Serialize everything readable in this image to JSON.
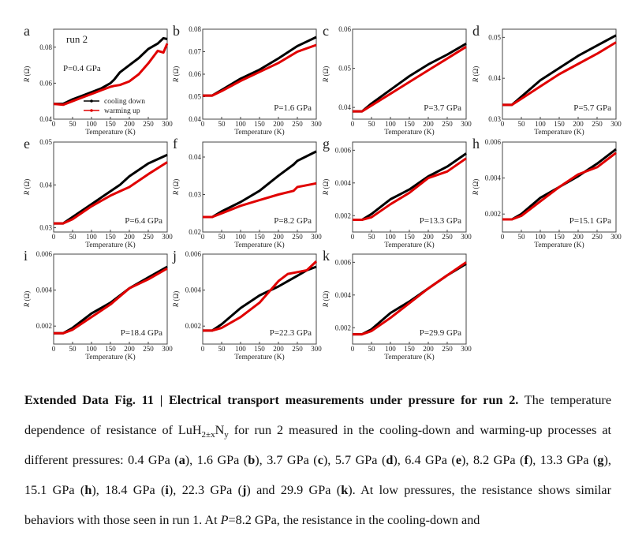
{
  "figure": {
    "x_ticks": [
      "0",
      "50",
      "100",
      "150",
      "200",
      "250",
      "300"
    ],
    "xlabel": "Temperature (K)",
    "ylabel_symbol": "R",
    "ylabel_unit": " (Ω)",
    "run_label": "run 2",
    "legend": [
      "cooling down",
      "warming up"
    ],
    "colors": {
      "cooling": "#000000",
      "warming": "#e00000"
    }
  },
  "chart_data": [
    {
      "panel": "a",
      "type": "line",
      "annotation": "P=0.4 GPa",
      "ylim": [
        0.04,
        0.09
      ],
      "y_ticks": [
        "0.04",
        "0.06",
        "0.08"
      ],
      "x": [
        0,
        25,
        50,
        75,
        100,
        125,
        150,
        160,
        175,
        200,
        225,
        250,
        275,
        290,
        300
      ],
      "series": [
        {
          "name": "cooling down",
          "values": [
            0.0485,
            0.0485,
            0.051,
            0.053,
            0.055,
            0.057,
            0.06,
            0.062,
            0.066,
            0.07,
            0.074,
            0.079,
            0.082,
            0.085,
            0.0845
          ]
        },
        {
          "name": "warming up",
          "values": [
            0.0485,
            0.048,
            0.05,
            0.052,
            0.054,
            0.056,
            0.058,
            0.0585,
            0.059,
            0.061,
            0.065,
            0.071,
            0.078,
            0.077,
            0.082
          ]
        }
      ]
    },
    {
      "panel": "b",
      "type": "line",
      "annotation": "P=1.6 GPa",
      "ylim": [
        0.04,
        0.08
      ],
      "y_ticks": [
        "0.04",
        "0.05",
        "0.06",
        "0.07",
        "0.08"
      ],
      "x": [
        0,
        25,
        50,
        100,
        150,
        200,
        250,
        300
      ],
      "series": [
        {
          "name": "cooling down",
          "values": [
            0.0505,
            0.0505,
            0.053,
            0.058,
            0.062,
            0.067,
            0.0725,
            0.0765
          ]
        },
        {
          "name": "warming up",
          "values": [
            0.0505,
            0.0505,
            0.0525,
            0.057,
            0.061,
            0.065,
            0.07,
            0.073
          ]
        }
      ]
    },
    {
      "panel": "c",
      "type": "line",
      "annotation": "P=3.7 GPa",
      "ylim": [
        0.037,
        0.06
      ],
      "y_ticks": [
        "0.04",
        "0.05",
        "0.06"
      ],
      "x": [
        0,
        25,
        50,
        100,
        150,
        200,
        250,
        300
      ],
      "series": [
        {
          "name": "cooling down",
          "values": [
            0.039,
            0.039,
            0.041,
            0.0445,
            0.048,
            0.051,
            0.0535,
            0.0563
          ]
        },
        {
          "name": "warming up",
          "values": [
            0.039,
            0.039,
            0.0405,
            0.0435,
            0.0465,
            0.0495,
            0.0525,
            0.0555
          ]
        }
      ]
    },
    {
      "panel": "d",
      "type": "line",
      "annotation": "P=5.7 GPa",
      "ylim": [
        0.03,
        0.052
      ],
      "y_ticks": [
        "0.03",
        "0.04",
        "0.05"
      ],
      "x": [
        0,
        25,
        50,
        100,
        150,
        200,
        250,
        300
      ],
      "series": [
        {
          "name": "cooling down",
          "values": [
            0.0335,
            0.0335,
            0.0355,
            0.0395,
            0.0425,
            0.0455,
            0.048,
            0.0505
          ]
        },
        {
          "name": "warming up",
          "values": [
            0.0335,
            0.0335,
            0.035,
            0.038,
            0.041,
            0.0435,
            0.046,
            0.0488
          ]
        }
      ]
    },
    {
      "panel": "e",
      "type": "line",
      "annotation": "P=6.4 GPa",
      "ylim": [
        0.029,
        0.05
      ],
      "y_ticks": [
        "0.03",
        "0.04",
        "0.05"
      ],
      "x": [
        0,
        25,
        50,
        100,
        150,
        175,
        200,
        250,
        300
      ],
      "series": [
        {
          "name": "cooling down",
          "values": [
            0.031,
            0.031,
            0.0325,
            0.0355,
            0.0385,
            0.04,
            0.042,
            0.045,
            0.047
          ]
        },
        {
          "name": "warming up",
          "values": [
            0.031,
            0.031,
            0.032,
            0.035,
            0.0375,
            0.0385,
            0.0395,
            0.0425,
            0.0453
          ]
        }
      ]
    },
    {
      "panel": "f",
      "type": "line",
      "annotation": "P=8.2 GPa",
      "ylim": [
        0.02,
        0.044
      ],
      "y_ticks": [
        "0.02",
        "0.03",
        "0.04"
      ],
      "x": [
        0,
        25,
        50,
        100,
        150,
        200,
        240,
        250,
        300
      ],
      "series": [
        {
          "name": "cooling down",
          "values": [
            0.024,
            0.024,
            0.0255,
            0.028,
            0.031,
            0.035,
            0.038,
            0.039,
            0.0415
          ]
        },
        {
          "name": "warming up",
          "values": [
            0.024,
            0.024,
            0.025,
            0.027,
            0.0285,
            0.03,
            0.031,
            0.032,
            0.033
          ]
        }
      ]
    },
    {
      "panel": "g",
      "type": "line",
      "annotation": "P=13.3 GPa",
      "ylim": [
        0.001,
        0.0065
      ],
      "y_ticks": [
        "0.002",
        "0.004",
        "0.006"
      ],
      "x": [
        0,
        25,
        50,
        100,
        150,
        200,
        250,
        300
      ],
      "series": [
        {
          "name": "cooling down",
          "values": [
            0.00175,
            0.00175,
            0.0021,
            0.003,
            0.0036,
            0.0044,
            0.005,
            0.0058
          ]
        },
        {
          "name": "warming up",
          "values": [
            0.00175,
            0.00175,
            0.0019,
            0.0027,
            0.0034,
            0.0043,
            0.0047,
            0.0055
          ]
        }
      ]
    },
    {
      "panel": "h",
      "type": "line",
      "annotation": "P=15.1 GPa",
      "ylim": [
        0.001,
        0.006
      ],
      "y_ticks": [
        "0.002",
        "0.004",
        "0.006"
      ],
      "x": [
        0,
        25,
        50,
        100,
        150,
        200,
        250,
        300
      ],
      "series": [
        {
          "name": "cooling down",
          "values": [
            0.0017,
            0.0017,
            0.002,
            0.0029,
            0.0035,
            0.0041,
            0.0048,
            0.0056
          ]
        },
        {
          "name": "warming up",
          "values": [
            0.0017,
            0.0017,
            0.0019,
            0.0027,
            0.0035,
            0.0042,
            0.0046,
            0.0054
          ]
        }
      ]
    },
    {
      "panel": "i",
      "type": "line",
      "annotation": "P=18.4 GPa",
      "ylim": [
        0.001,
        0.006
      ],
      "y_ticks": [
        "0.002",
        "0.004",
        "0.006"
      ],
      "x": [
        0,
        25,
        50,
        100,
        150,
        200,
        250,
        300
      ],
      "series": [
        {
          "name": "cooling down",
          "values": [
            0.0016,
            0.0016,
            0.0019,
            0.0027,
            0.0033,
            0.0041,
            0.0047,
            0.0053
          ]
        },
        {
          "name": "warming up",
          "values": [
            0.0016,
            0.0016,
            0.0018,
            0.0025,
            0.0032,
            0.0041,
            0.0046,
            0.0052
          ]
        }
      ]
    },
    {
      "panel": "j",
      "type": "line",
      "annotation": "P=22.3 GPa",
      "ylim": [
        0.001,
        0.006
      ],
      "y_ticks": [
        "0.002",
        "0.004",
        "0.006"
      ],
      "x": [
        0,
        25,
        50,
        100,
        150,
        200,
        225,
        250,
        275,
        300
      ],
      "series": [
        {
          "name": "cooling down",
          "values": [
            0.00175,
            0.00175,
            0.0021,
            0.003,
            0.0037,
            0.0042,
            0.0045,
            0.0048,
            0.0051,
            0.0053
          ]
        },
        {
          "name": "warming up",
          "values": [
            0.00175,
            0.00175,
            0.0019,
            0.0025,
            0.0033,
            0.0045,
            0.0049,
            0.005,
            0.0051,
            0.0056
          ]
        }
      ]
    },
    {
      "panel": "k",
      "type": "line",
      "annotation": "P=29.9 GPa",
      "ylim": [
        0.001,
        0.0065
      ],
      "y_ticks": [
        "0.002",
        "0.004",
        "0.006"
      ],
      "x": [
        0,
        25,
        50,
        100,
        150,
        200,
        250,
        300
      ],
      "series": [
        {
          "name": "cooling down",
          "values": [
            0.0016,
            0.0016,
            0.0019,
            0.0029,
            0.0036,
            0.0044,
            0.0052,
            0.0059
          ]
        },
        {
          "name": "warming up",
          "values": [
            0.0016,
            0.0016,
            0.0018,
            0.0026,
            0.0035,
            0.0044,
            0.0052,
            0.006
          ]
        }
      ]
    }
  ],
  "caption": [
    {
      "t": "Extended Data Fig. 11 | Electrical transport measurements under pressure for run 2.",
      "s": "b"
    },
    {
      "t": " The temperature dependence of resistance of LuH"
    },
    {
      "t": "2±x",
      "s": "sub"
    },
    {
      "t": "N"
    },
    {
      "t": "y",
      "s": "sub"
    },
    {
      "t": " for run 2 measured in the cooling-down and warming-up processes at different pressures: 0.4 GPa ("
    },
    {
      "t": "a",
      "s": "b"
    },
    {
      "t": "), 1.6 GPa ("
    },
    {
      "t": "b",
      "s": "b"
    },
    {
      "t": "), 3.7 GPa ("
    },
    {
      "t": "c",
      "s": "b"
    },
    {
      "t": "), 5.7 GPa ("
    },
    {
      "t": "d",
      "s": "b"
    },
    {
      "t": "), 6.4 GPa ("
    },
    {
      "t": "e",
      "s": "b"
    },
    {
      "t": "), 8.2 GPa ("
    },
    {
      "t": "f",
      "s": "b"
    },
    {
      "t": "), 13.3 GPa ("
    },
    {
      "t": "g",
      "s": "b"
    },
    {
      "t": "), 15.1 GPa ("
    },
    {
      "t": "h",
      "s": "b"
    },
    {
      "t": "), 18.4 GPa ("
    },
    {
      "t": "i",
      "s": "b"
    },
    {
      "t": "), 22.3 GPa ("
    },
    {
      "t": "j",
      "s": "b"
    },
    {
      "t": ") and 29.9 GPa ("
    },
    {
      "t": "k",
      "s": "b"
    },
    {
      "t": "). At low pressures, the resistance shows similar behaviors with those seen in run 1. At "
    },
    {
      "t": "P",
      "s": "i"
    },
    {
      "t": "=8.2 GPa, the resistance in the cooling-down and"
    }
  ]
}
